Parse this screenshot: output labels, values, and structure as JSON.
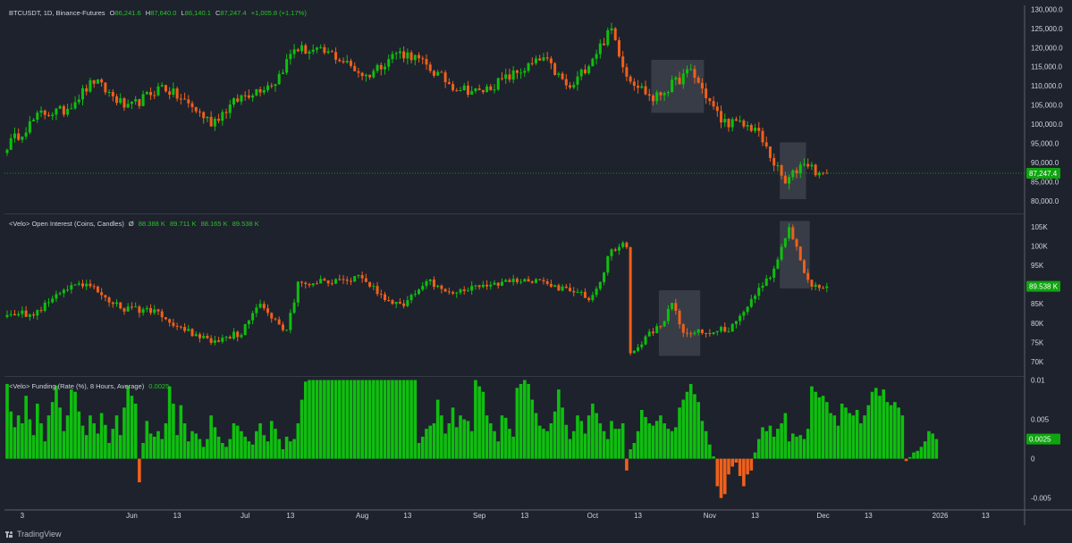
{
  "app": {
    "brand": "TradingView"
  },
  "colors": {
    "up": "#0fbf0f",
    "down": "#f0601a",
    "bg": "#1e222d",
    "grid": "#5d606b",
    "text": "#d1d4dc",
    "highlight": "#787b86"
  },
  "price_pane": {
    "legend": {
      "symbol": "BTCUSDT, 1D, Binance-Futures",
      "o_label": "O",
      "o_value": "86,241.6",
      "h_label": "H",
      "h_value": "87,640.0",
      "l_label": "L",
      "l_value": "86,140.1",
      "c_label": "C",
      "c_value": "87,247.4",
      "change": "+1,005.8 (+1.17%)"
    },
    "last_price_label": "87,247.4"
  },
  "oi_pane": {
    "legend": {
      "title": "<Velo> Open Interest (Coins, Candles)",
      "symbol_glyph": "Ø",
      "values": [
        "88.388 K",
        "89.711 K",
        "88.165 K",
        "89.538 K"
      ]
    },
    "last_value_label": "89.538 K"
  },
  "funding_pane": {
    "legend": {
      "title": "<Velo> Funding (Rate (%), 8 Hours, Average)",
      "value": "0.0025"
    },
    "last_value_label": "0.0025"
  },
  "chart_data": [
    {
      "type": "candlestick",
      "title": "BTCUSDT, 1D, Binance-Futures",
      "y_ticks": [
        "130,000.0",
        "125,000.0",
        "120,000.0",
        "115,000.0",
        "110,000.0",
        "105,000.0",
        "100,000.0",
        "95,000.0",
        "90,000.0",
        "85,000.0",
        "80,000.0"
      ],
      "y_tick_values": [
        130000,
        125000,
        120000,
        115000,
        110000,
        105000,
        100000,
        95000,
        90000,
        85000,
        80000
      ],
      "ylim": [
        77000,
        131000
      ],
      "x_tick_labels": [
        "3",
        "Jun",
        "13",
        "Jul",
        "13",
        "Aug",
        "13",
        "Sep",
        "13",
        "Oct",
        "13",
        "Nov",
        "13",
        "Dec",
        "13",
        "2026",
        "13"
      ],
      "x_tick_dates": [
        "2025-05-03",
        "2025-06-01",
        "2025-06-13",
        "2025-07-01",
        "2025-07-13",
        "2025-08-01",
        "2025-08-13",
        "2025-09-01",
        "2025-09-13",
        "2025-10-01",
        "2025-10-13",
        "2025-11-01",
        "2025-11-13",
        "2025-12-01",
        "2025-12-13",
        "2026-01-01",
        "2026-01-13"
      ],
      "start_date": "2025-04-29",
      "end_date": "2025-12-02",
      "last_close": 87247.4,
      "path_daily_close_key_points": [
        {
          "date": "2025-04-29",
          "close": 94500
        },
        {
          "date": "2025-05-08",
          "close": 102800
        },
        {
          "date": "2025-05-14",
          "close": 103500
        },
        {
          "date": "2025-05-22",
          "close": 111300
        },
        {
          "date": "2025-05-31",
          "close": 104000
        },
        {
          "date": "2025-06-09",
          "close": 110000
        },
        {
          "date": "2025-06-17",
          "close": 104500
        },
        {
          "date": "2025-06-22",
          "close": 100500
        },
        {
          "date": "2025-06-30",
          "close": 107200
        },
        {
          "date": "2025-07-09",
          "close": 111200
        },
        {
          "date": "2025-07-14",
          "close": 119800
        },
        {
          "date": "2025-07-24",
          "close": 118300
        },
        {
          "date": "2025-08-02",
          "close": 112500
        },
        {
          "date": "2025-08-10",
          "close": 118700
        },
        {
          "date": "2025-08-14",
          "close": 118000
        },
        {
          "date": "2025-08-25",
          "close": 110000
        },
        {
          "date": "2025-09-01",
          "close": 108300
        },
        {
          "date": "2025-09-18",
          "close": 117100
        },
        {
          "date": "2025-09-25",
          "close": 109000
        },
        {
          "date": "2025-10-06",
          "close": 124700
        },
        {
          "date": "2025-10-10",
          "close": 113000
        },
        {
          "date": "2025-10-17",
          "close": 106500
        },
        {
          "date": "2025-10-27",
          "close": 114000
        },
        {
          "date": "2025-11-04",
          "close": 101000
        },
        {
          "date": "2025-11-13",
          "close": 99000
        },
        {
          "date": "2025-11-21",
          "close": 84500
        },
        {
          "date": "2025-11-26",
          "close": 90500
        },
        {
          "date": "2025-12-01",
          "close": 86240
        },
        {
          "date": "2025-12-02",
          "close": 87247
        }
      ],
      "highlight_boxes": [
        {
          "start_date": "2025-10-17",
          "end_date": "2025-10-30",
          "low": 103000,
          "high": 116800
        },
        {
          "start_date": "2025-11-20",
          "end_date": "2025-11-26",
          "low": 80500,
          "high": 95300
        }
      ]
    },
    {
      "type": "candlestick",
      "title": "<Velo> Open Interest (Coins, Candles)",
      "y_ticks": [
        "105K",
        "100K",
        "95K",
        "90K",
        "85K",
        "80K",
        "75K",
        "70K"
      ],
      "y_tick_values": [
        105000,
        100000,
        95000,
        90000,
        85000,
        80000,
        75000,
        70000
      ],
      "ylim": [
        66500,
        108000
      ],
      "last_value": 89538,
      "path_daily_close_key_points": [
        {
          "date": "2025-04-29",
          "close": 83000
        },
        {
          "date": "2025-05-06",
          "close": 82000
        },
        {
          "date": "2025-05-14",
          "close": 88500
        },
        {
          "date": "2025-05-20",
          "close": 90000
        },
        {
          "date": "2025-05-30",
          "close": 83500
        },
        {
          "date": "2025-06-06",
          "close": 83500
        },
        {
          "date": "2025-06-14",
          "close": 78500
        },
        {
          "date": "2025-06-22",
          "close": 75500
        },
        {
          "date": "2025-06-30",
          "close": 77500
        },
        {
          "date": "2025-07-05",
          "close": 85000
        },
        {
          "date": "2025-07-12",
          "close": 78000
        },
        {
          "date": "2025-07-15",
          "close": 90000
        },
        {
          "date": "2025-08-01",
          "close": 92000
        },
        {
          "date": "2025-08-07",
          "close": 86000
        },
        {
          "date": "2025-08-12",
          "close": 85000
        },
        {
          "date": "2025-08-18",
          "close": 91000
        },
        {
          "date": "2025-08-25",
          "close": 88000
        },
        {
          "date": "2025-09-10",
          "close": 91000
        },
        {
          "date": "2025-09-18",
          "close": 91500
        },
        {
          "date": "2025-09-22",
          "close": 89000
        },
        {
          "date": "2025-10-01",
          "close": 86500
        },
        {
          "date": "2025-10-06",
          "close": 99000
        },
        {
          "date": "2025-10-10",
          "close": 100500
        },
        {
          "date": "2025-10-11",
          "close": 72000
        },
        {
          "date": "2025-10-20",
          "close": 81000
        },
        {
          "date": "2025-10-22",
          "close": 85000
        },
        {
          "date": "2025-10-25",
          "close": 77000
        },
        {
          "date": "2025-11-01",
          "close": 78000
        },
        {
          "date": "2025-11-06",
          "close": 78500
        },
        {
          "date": "2025-11-12",
          "close": 86000
        },
        {
          "date": "2025-11-18",
          "close": 94000
        },
        {
          "date": "2025-11-22",
          "close": 104500
        },
        {
          "date": "2025-11-25",
          "close": 97000
        },
        {
          "date": "2025-11-27",
          "close": 90500
        },
        {
          "date": "2025-12-02",
          "close": 89538
        }
      ],
      "highlight_boxes": [
        {
          "start_date": "2025-10-19",
          "end_date": "2025-10-29",
          "low": 71500,
          "high": 88500
        },
        {
          "start_date": "2025-11-20",
          "end_date": "2025-11-27",
          "low": 89000,
          "high": 106500
        }
      ]
    },
    {
      "type": "bar",
      "title": "<Velo> Funding (Rate (%), 8 Hours, Average)",
      "y_ticks": [
        "0.01",
        "0.005",
        "0",
        "-0.005"
      ],
      "y_tick_values": [
        0.01,
        0.005,
        0,
        -0.005
      ],
      "ylim": [
        -0.0064,
        0.0104
      ],
      "last_value": 0.0025,
      "daily_values": [
        0.0095,
        0.006,
        0.004,
        0.0055,
        0.0045,
        0.008,
        0.005,
        0.003,
        0.007,
        0.0045,
        0.0022,
        0.0055,
        0.0072,
        0.0093,
        0.0065,
        0.0035,
        0.0055,
        0.0088,
        0.0085,
        0.006,
        0.0042,
        0.003,
        0.0055,
        0.0045,
        0.0032,
        0.0058,
        0.0043,
        0.002,
        0.0038,
        0.0055,
        0.003,
        0.0065,
        0.0092,
        0.008,
        0.007,
        -0.003,
        0.002,
        0.0048,
        0.0032,
        0.0028,
        0.0035,
        0.0025,
        0.0045,
        0.0092,
        0.007,
        0.003,
        0.0068,
        0.0045,
        0.0022,
        0.0035,
        0.0032,
        0.0025,
        0.0015,
        0.0025,
        0.0055,
        0.004,
        0.0028,
        0.002,
        0.0015,
        0.0025,
        0.0045,
        0.0042,
        0.0035,
        0.0028,
        0.0022,
        0.0018,
        0.0035,
        0.0045,
        0.003,
        0.0022,
        0.0048,
        0.0038,
        0.0025,
        0.0012,
        0.0028,
        0.0022,
        0.0025,
        0.0045,
        0.0075,
        0.0098,
        0.01,
        0.01,
        0.01,
        0.01,
        0.01,
        0.01,
        0.01,
        0.01,
        0.01,
        0.01,
        0.01,
        0.01,
        0.01,
        0.01,
        0.01,
        0.01,
        0.01,
        0.01,
        0.01,
        0.01,
        0.01,
        0.01,
        0.01,
        0.01,
        0.01,
        0.01,
        0.01,
        0.01,
        0.01,
        0.002,
        0.0028,
        0.0038,
        0.0042,
        0.0045,
        0.0075,
        0.0055,
        0.0032,
        0.0045,
        0.0065,
        0.004,
        0.0055,
        0.005,
        0.0048,
        0.0035,
        0.01,
        0.0092,
        0.0085,
        0.0055,
        0.0045,
        0.0035,
        0.0022,
        0.0055,
        0.0052,
        0.0038,
        0.0028,
        0.009,
        0.0095,
        0.01,
        0.0095,
        0.0075,
        0.0058,
        0.0042,
        0.0038,
        0.0035,
        0.0045,
        0.006,
        0.0088,
        0.0065,
        0.0043,
        0.0025,
        0.0035,
        0.0055,
        0.0048,
        0.0032,
        0.0055,
        0.007,
        0.0058,
        0.0045,
        0.0035,
        0.0025,
        0.0048,
        0.0038,
        0.0038,
        0.0045,
        -0.0015,
        0.0012,
        0.002,
        0.0035,
        0.0062,
        0.0053,
        0.0045,
        0.0042,
        0.0048,
        0.0055,
        0.0045,
        0.0038,
        0.0035,
        0.004,
        0.0065,
        0.0075,
        0.0085,
        0.0095,
        0.0082,
        0.0072,
        0.0048,
        0.0035,
        0.0018,
        0.0003,
        -0.0035,
        -0.005,
        -0.0045,
        -0.002,
        -0.001,
        -0.0005,
        -0.0022,
        -0.0035,
        -0.002,
        -0.0015,
        0.0008,
        0.0025,
        0.004,
        0.0035,
        0.0042,
        0.0028,
        0.0038,
        0.0045,
        0.0058,
        0.0022,
        0.0032,
        0.0028,
        0.003,
        0.0025,
        0.0038,
        0.0092,
        0.0085,
        0.0078,
        0.008,
        0.0072,
        0.0058,
        0.0055,
        0.0042,
        0.007,
        0.0065,
        0.0058,
        0.0055,
        0.0062,
        0.0045,
        0.0055,
        0.0068,
        0.0085,
        0.009,
        0.008,
        0.0088,
        0.0072,
        0.0068,
        0.0072,
        0.0065,
        0.0055,
        -0.0003,
        0.0002,
        0.0008,
        0.001,
        0.0015,
        0.0022,
        0.0035,
        0.0032,
        0.0025
      ]
    }
  ]
}
